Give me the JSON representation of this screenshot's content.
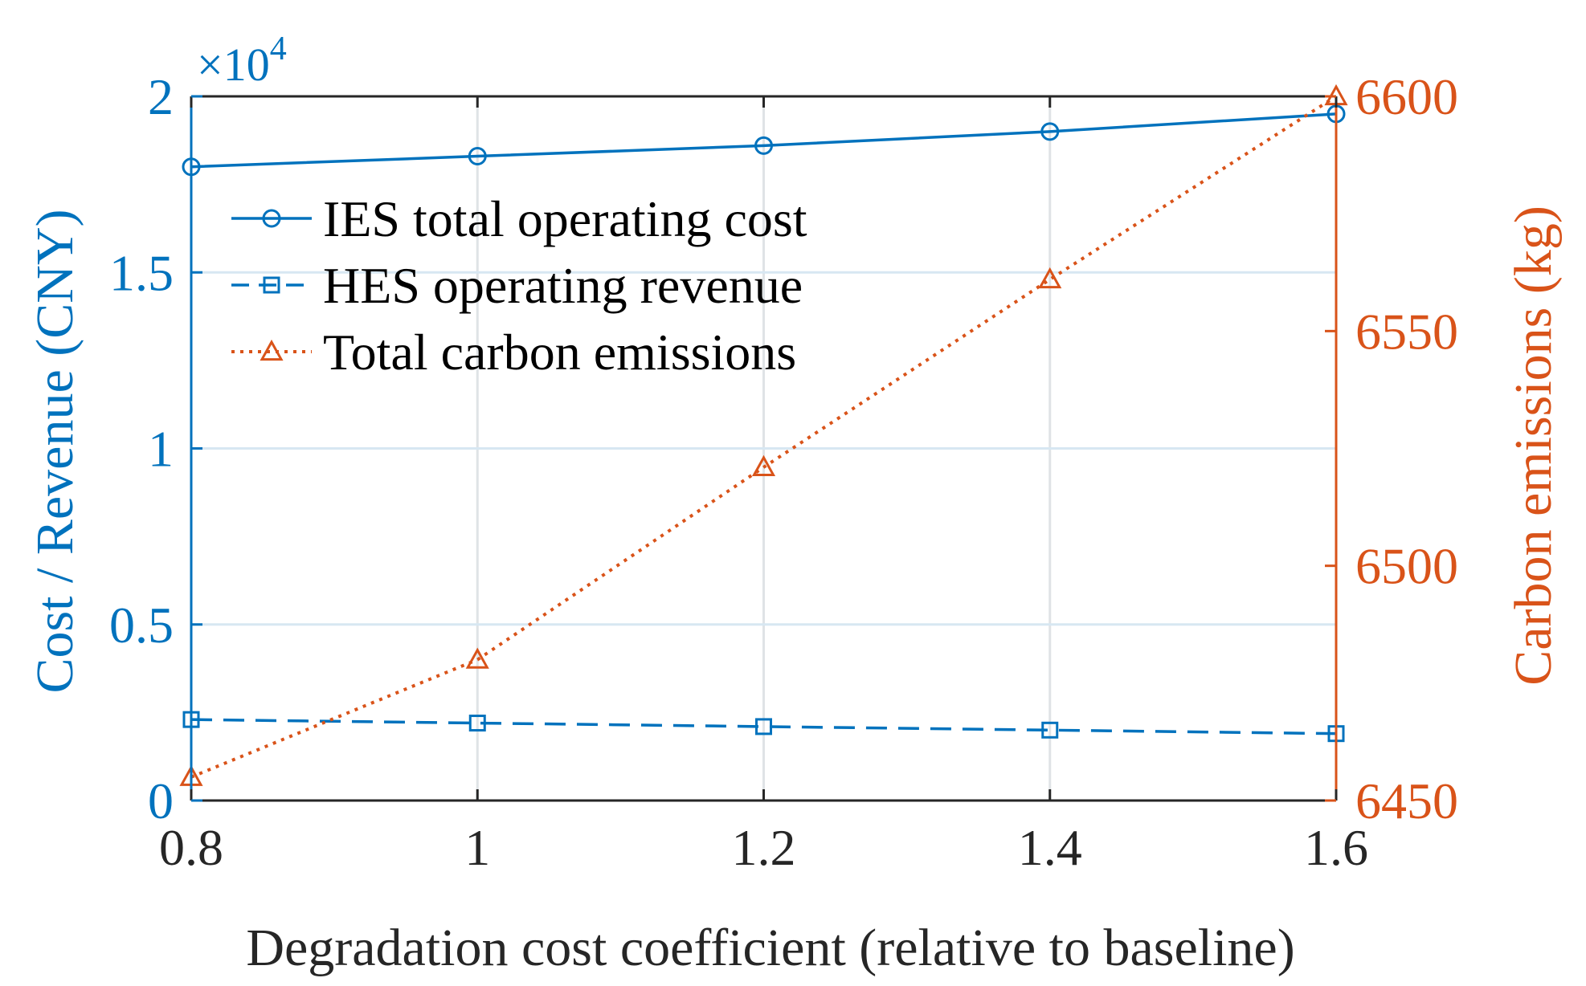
{
  "chart_data": {
    "type": "line",
    "xlabel": "Degradation cost coefficient (relative to baseline)",
    "ylabel_left": "Cost / Revenue (CNY)",
    "ylabel_right": "Carbon emissions (kg)",
    "left_exponent_base": "×10",
    "left_exponent_power": "4",
    "x": [
      0.8,
      1,
      1.2,
      1.4,
      1.6
    ],
    "x_tick_labels": [
      "0.8",
      "1",
      "1.2",
      "1.4",
      "1.6"
    ],
    "xlim": [
      0.8,
      1.6
    ],
    "ylim_left": [
      0,
      2
    ],
    "ylim_right": [
      6450,
      6600
    ],
    "y_left_ticks": [
      0,
      0.5,
      1,
      1.5,
      2
    ],
    "y_left_tick_labels": [
      "0",
      "0.5",
      "1",
      "1.5",
      "2"
    ],
    "y_right_ticks": [
      6450,
      6500,
      6550,
      6600
    ],
    "y_right_tick_labels": [
      "6450",
      "6500",
      "6550",
      "6600"
    ],
    "grid": true,
    "legend_position": "top-left",
    "series": [
      {
        "name": "IES total operating cost",
        "axis": "left",
        "values": [
          1.8,
          1.83,
          1.86,
          1.9,
          1.95
        ],
        "color": "#0072BD",
        "line_style": "solid",
        "marker": "circle"
      },
      {
        "name": "HES operating revenue",
        "axis": "left",
        "values": [
          0.23,
          0.22,
          0.21,
          0.2,
          0.19
        ],
        "color": "#0072BD",
        "line_style": "dashed",
        "marker": "square"
      },
      {
        "name": "Total carbon emissions",
        "axis": "right",
        "values": [
          6455,
          6480,
          6521,
          6561,
          6600
        ],
        "color": "#D95319",
        "line_style": "dotted",
        "marker": "triangle"
      }
    ]
  }
}
